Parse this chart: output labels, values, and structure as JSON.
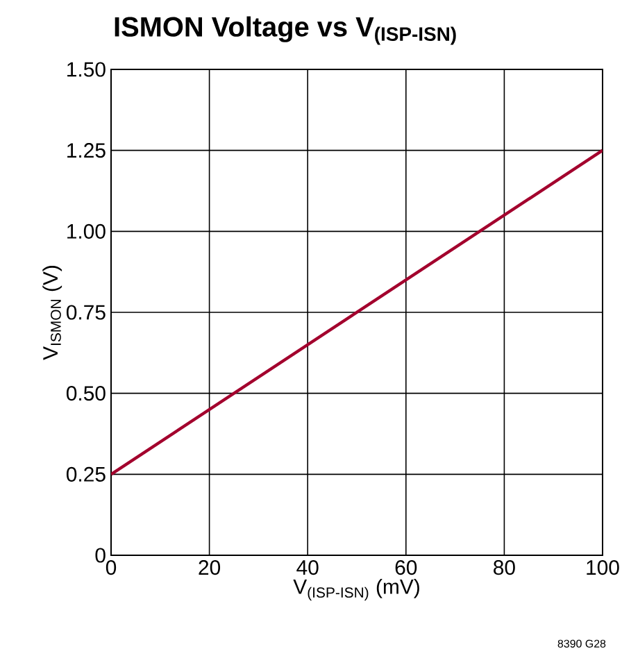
{
  "chart_data": {
    "type": "line",
    "title": "ISMON Voltage vs V$_{(ISP-ISN)}$",
    "xlabel": "V$_{(ISP-ISN)}$ (mV)",
    "ylabel": "V$_{ISMON}$ (V)",
    "x": [
      0,
      100
    ],
    "series": [
      {
        "color": "#a3002d",
        "values": [
          0.25,
          1.25
        ]
      }
    ],
    "xlim": [
      0,
      100
    ],
    "xticks": [
      0,
      20,
      40,
      60,
      80,
      100
    ],
    "ylim": [
      0,
      1.5
    ],
    "yticks": [
      0,
      {
        "value": 0.25,
        "label": "0.25"
      },
      {
        "value": 0.5,
        "label": "0.50"
      },
      {
        "value": 0.75,
        "label": "0.75"
      },
      {
        "value": 1,
        "label": "1.00"
      },
      {
        "value": 1.25,
        "label": "1.25"
      },
      {
        "value": 1.5,
        "label": "1.50"
      }
    ],
    "grid": true,
    "marker": "none",
    "line_style": "solid",
    "annotations": [
      "8390 G28"
    ]
  }
}
